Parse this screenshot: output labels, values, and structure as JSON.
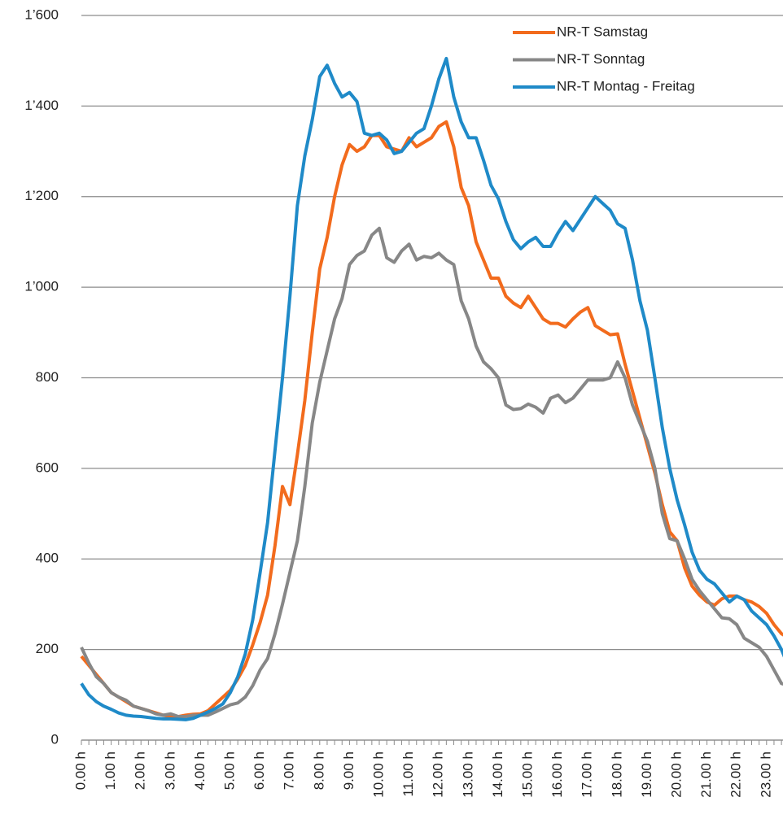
{
  "chart_data": {
    "type": "line",
    "categories": [
      "0.00 h",
      null,
      null,
      null,
      "1.00 h",
      null,
      null,
      null,
      "2.00 h",
      null,
      null,
      null,
      "3.00 h",
      null,
      null,
      null,
      "4.00 h",
      null,
      null,
      null,
      "5.00 h",
      null,
      null,
      null,
      "6.00 h",
      null,
      null,
      null,
      "7.00 h",
      null,
      null,
      null,
      "8.00 h",
      null,
      null,
      null,
      "9.00 h",
      null,
      null,
      null,
      "10.00 h",
      null,
      null,
      null,
      "11.00 h",
      null,
      null,
      null,
      "12.00 h",
      null,
      null,
      null,
      "13.00 h",
      null,
      null,
      null,
      "14.00 h",
      null,
      null,
      null,
      "15.00 h",
      null,
      null,
      null,
      "16.00 h",
      null,
      null,
      null,
      "17.00 h",
      null,
      null,
      null,
      "18.00 h",
      null,
      null,
      null,
      "19.00 h",
      null,
      null,
      null,
      "20.00 h",
      null,
      null,
      null,
      "21.00 h",
      null,
      null,
      null,
      "22.00 h",
      null,
      null,
      null,
      "23.00 h",
      null,
      null,
      null
    ],
    "series": [
      {
        "name": "NR-T Samstag",
        "color": "#f26b1d",
        "values": [
          185,
          165,
          145,
          125,
          105,
          95,
          85,
          75,
          70,
          65,
          60,
          55,
          52,
          52,
          55,
          57,
          58,
          65,
          80,
          95,
          110,
          135,
          165,
          210,
          260,
          320,
          430,
          560,
          520,
          630,
          750,
          900,
          1040,
          1110,
          1200,
          1270,
          1315,
          1300,
          1310,
          1335,
          1335,
          1310,
          1305,
          1300,
          1330,
          1310,
          1320,
          1330,
          1355,
          1365,
          1310,
          1220,
          1180,
          1100,
          1060,
          1020,
          1020,
          980,
          965,
          955,
          980,
          955,
          930,
          920,
          920,
          912,
          930,
          945,
          955,
          915,
          905,
          895,
          897,
          830,
          770,
          710,
          650,
          590,
          520,
          460,
          440,
          380,
          340,
          320,
          305,
          298,
          312,
          318,
          318,
          310,
          305,
          295,
          280,
          255,
          235,
          225
        ]
      },
      {
        "name": "NR-T Sonntag",
        "color": "#878787",
        "values": [
          205,
          170,
          140,
          125,
          105,
          95,
          88,
          75,
          70,
          65,
          58,
          55,
          58,
          52,
          52,
          55,
          55,
          55,
          62,
          70,
          78,
          82,
          95,
          120,
          155,
          180,
          235,
          300,
          370,
          440,
          560,
          700,
          790,
          860,
          930,
          975,
          1050,
          1070,
          1080,
          1115,
          1130,
          1065,
          1055,
          1080,
          1095,
          1060,
          1068,
          1065,
          1075,
          1060,
          1050,
          970,
          930,
          870,
          835,
          820,
          800,
          740,
          730,
          732,
          742,
          735,
          722,
          755,
          762,
          745,
          755,
          775,
          795,
          795,
          795,
          800,
          835,
          800,
          740,
          700,
          660,
          600,
          500,
          445,
          440,
          400,
          355,
          330,
          310,
          290,
          270,
          268,
          255,
          225,
          215,
          205,
          185,
          155,
          125,
          120
        ]
      },
      {
        "name": "NR-T Montag - Freitag",
        "color": "#1f8ac8",
        "values": [
          125,
          100,
          85,
          75,
          68,
          60,
          55,
          53,
          52,
          50,
          48,
          47,
          47,
          46,
          45,
          48,
          55,
          62,
          70,
          80,
          105,
          140,
          190,
          265,
          370,
          480,
          640,
          800,
          980,
          1180,
          1290,
          1370,
          1465,
          1490,
          1450,
          1420,
          1430,
          1410,
          1340,
          1335,
          1340,
          1325,
          1295,
          1300,
          1320,
          1340,
          1350,
          1400,
          1460,
          1505,
          1420,
          1365,
          1330,
          1330,
          1280,
          1225,
          1195,
          1145,
          1105,
          1085,
          1100,
          1110,
          1090,
          1090,
          1120,
          1145,
          1125,
          1150,
          1175,
          1200,
          1185,
          1170,
          1140,
          1130,
          1060,
          970,
          905,
          800,
          690,
          600,
          530,
          475,
          415,
          375,
          355,
          345,
          325,
          305,
          318,
          310,
          285,
          270,
          255,
          230,
          200,
          160
        ]
      }
    ],
    "ylim": [
      0,
      1600
    ],
    "yticks": [
      0,
      200,
      400,
      600,
      800,
      {
        "value": 1000,
        "label": "1’000"
      },
      {
        "value": 1200,
        "label": "1’200"
      },
      {
        "value": 1400,
        "label": "1’400"
      },
      {
        "value": 1600,
        "label": "1’600"
      }
    ],
    "grid": true,
    "legend": "top-right"
  }
}
